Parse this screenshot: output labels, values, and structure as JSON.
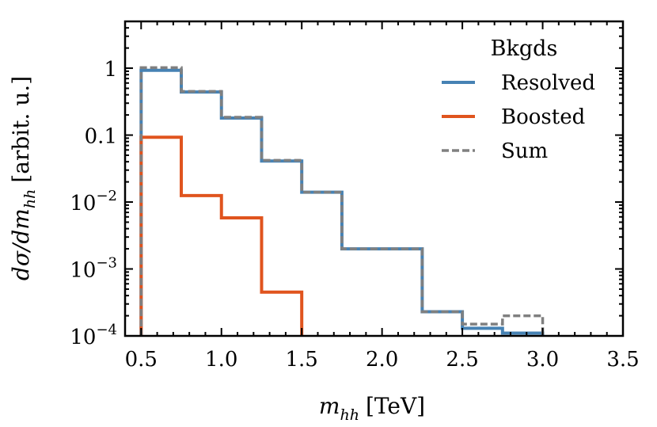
{
  "chart_data": {
    "type": "line",
    "drawstyle": "steps",
    "title": "",
    "xlabel": "m_hh [TeV]",
    "xlabel_main": "m",
    "xlabel_sub": "hh",
    "xlabel_unit": "[TeV]",
    "ylabel": "dσ/dm_hh [arbit. u.]",
    "ylabel_main": "dσ/dm",
    "ylabel_sub": "hh",
    "ylabel_unit": "[arbit. u.]",
    "xlim": [
      0.4,
      3.5
    ],
    "ylim": [
      0.0001,
      5
    ],
    "yscale": "log",
    "x_ticks": [
      {
        "value": 0.5,
        "label": "0.5"
      },
      {
        "value": 1.0,
        "label": "1.0"
      },
      {
        "value": 1.5,
        "label": "1.5"
      },
      {
        "value": 2.0,
        "label": "2.0"
      },
      {
        "value": 2.5,
        "label": "2.5"
      },
      {
        "value": 3.0,
        "label": "3.0"
      },
      {
        "value": 3.5,
        "label": "3.5"
      }
    ],
    "y_ticks": [
      {
        "value": 1,
        "label": "1",
        "base": "",
        "exp": ""
      },
      {
        "value": 0.1,
        "label": "0.1",
        "base": "",
        "exp": ""
      },
      {
        "value": 0.01,
        "label": "10^-2",
        "base": "10",
        "exp": "−2"
      },
      {
        "value": 0.001,
        "label": "10^-3",
        "base": "10",
        "exp": "−3"
      },
      {
        "value": 0.0001,
        "label": "10^-4",
        "base": "10",
        "exp": "−4"
      }
    ],
    "bin_edges": [
      0.5,
      0.75,
      1.0,
      1.25,
      1.5,
      1.75,
      2.0,
      2.25,
      2.5,
      2.75,
      3.0
    ],
    "series": [
      {
        "name": "Resolved",
        "color": "#4682b4",
        "style": "solid",
        "values": [
          0.93,
          0.44,
          0.18,
          0.041,
          0.014,
          0.002,
          0.002,
          0.00023,
          0.00013,
          0.00011
        ]
      },
      {
        "name": "Boosted",
        "color": "#e0541e",
        "style": "solid",
        "values": [
          0.093,
          0.0125,
          0.0058,
          0.00045,
          0,
          0,
          0,
          0,
          0,
          0
        ]
      },
      {
        "name": "Sum",
        "color": "#808080",
        "style": "dashed",
        "values": [
          1.02,
          0.45,
          0.185,
          0.042,
          0.014,
          0.002,
          0.002,
          0.00023,
          0.00015,
          0.0002
        ]
      }
    ],
    "legend": {
      "title": "Bkgds",
      "location": "top-right"
    }
  }
}
